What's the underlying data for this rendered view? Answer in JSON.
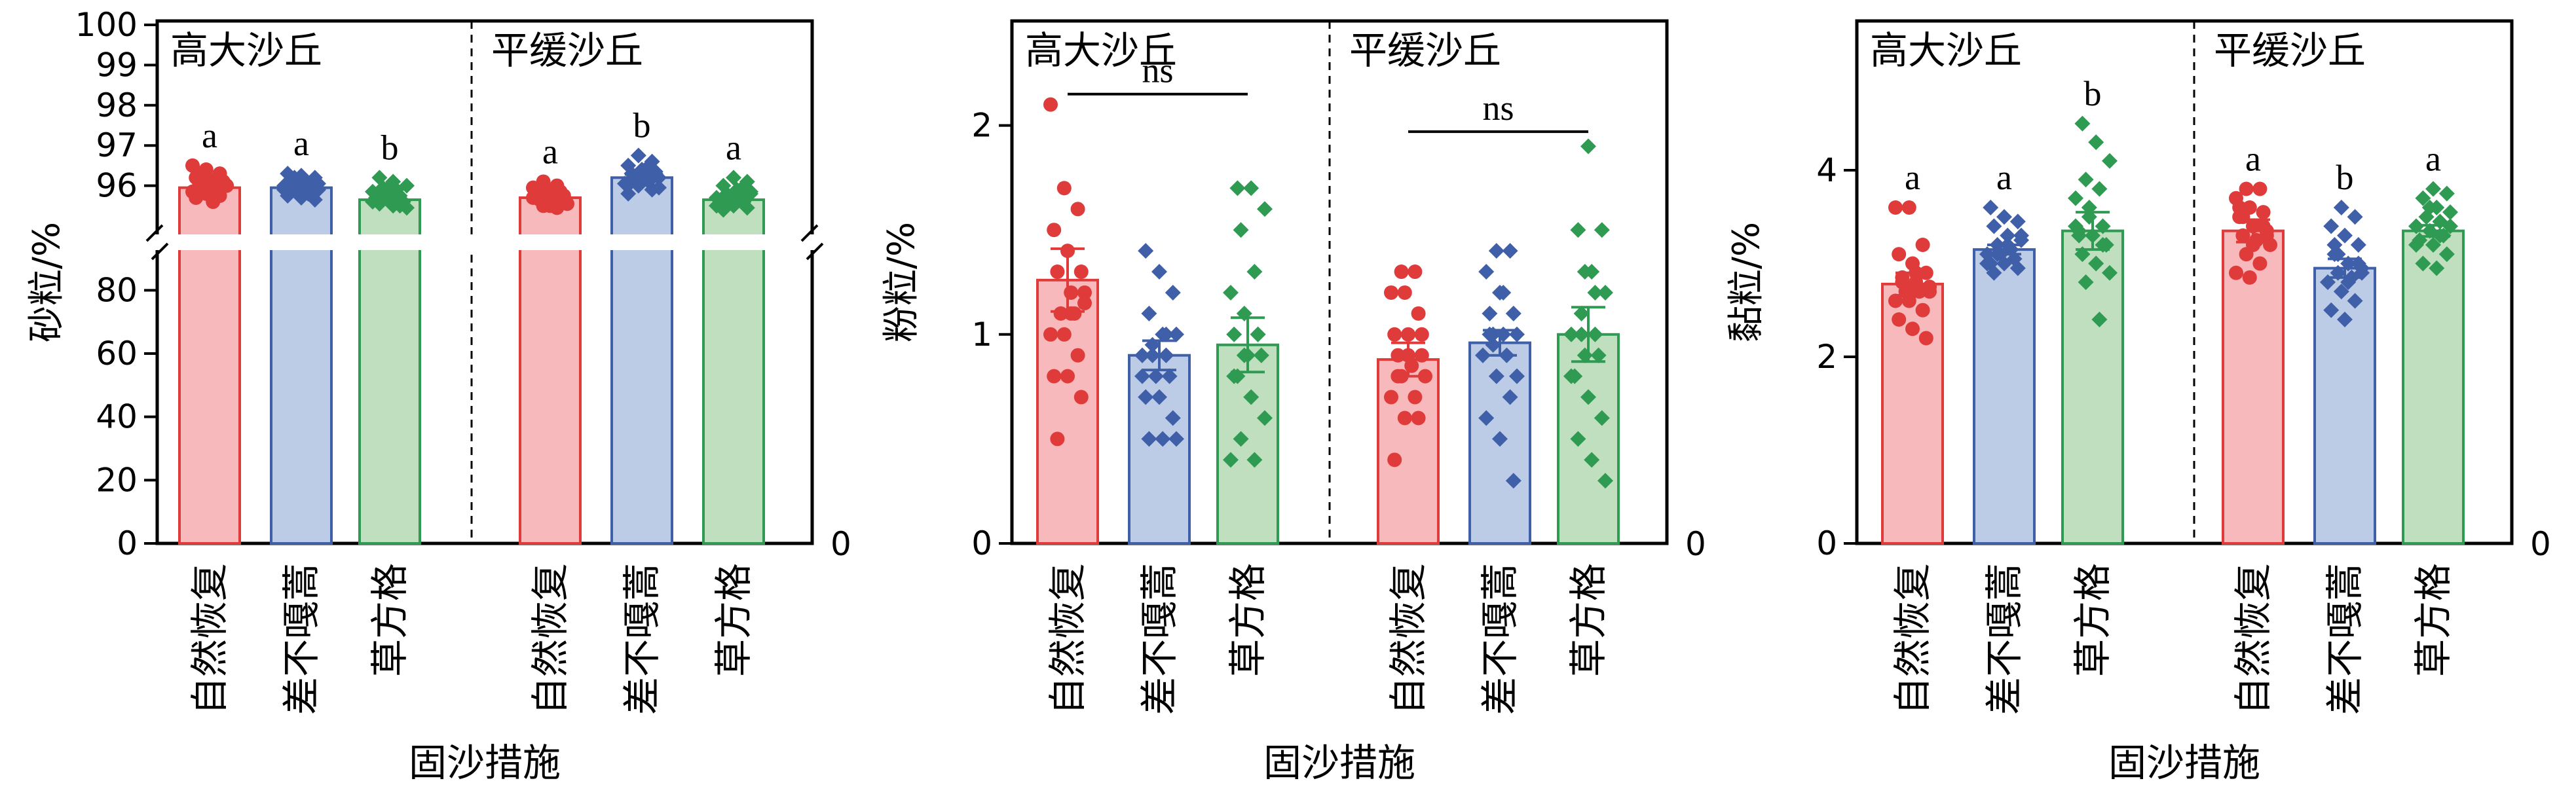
{
  "colors": {
    "red": "#e03b3b",
    "red_fill": "#f7b9bb",
    "blue": "#3f5fa8",
    "blue_fill": "#bccbe6",
    "green": "#2f9a52",
    "green_fill": "#bfdfbf"
  },
  "chart_data": [
    {
      "type": "bar",
      "ylabel": "砂粒/%",
      "xlabel": "固沙措施",
      "groups": [
        "高大沙丘",
        "平缓沙丘"
      ],
      "categories": [
        "自然恢复",
        "差不嘎蒿",
        "草方格"
      ],
      "y_axis_broken": true,
      "ylim_lower": [
        0,
        90
      ],
      "ylim_upper": [
        95,
        100
      ],
      "yticks_lower": [
        "0",
        "20",
        "40",
        "60",
        "80"
      ],
      "yticks_upper": [
        "96",
        "97",
        "98",
        "99",
        "100"
      ],
      "right_axis_tick": "0",
      "bars": [
        {
          "group": 0,
          "category": 0,
          "color": "red",
          "mean": 95.95,
          "err": 0.1,
          "sig": "a",
          "points": [
            96.5,
            96.4,
            96.3,
            96.2,
            96.15,
            96.1,
            96.05,
            96.0,
            96.0,
            95.95,
            95.9,
            95.85,
            95.8,
            95.75,
            95.7,
            95.9,
            96.1,
            96.3,
            95.6,
            96.0
          ]
        },
        {
          "group": 0,
          "category": 1,
          "color": "blue",
          "mean": 95.95,
          "err": 0.08,
          "sig": "a",
          "points": [
            96.3,
            96.25,
            96.2,
            96.15,
            96.1,
            96.05,
            96.0,
            95.95,
            95.9,
            95.85,
            95.8,
            95.75,
            95.7,
            95.65,
            96.0,
            96.1,
            95.9,
            96.2,
            95.8,
            96.0
          ]
        },
        {
          "group": 0,
          "category": 2,
          "color": "green",
          "mean": 95.65,
          "err": 0.08,
          "sig": "b",
          "points": [
            96.2,
            96.1,
            96.0,
            95.95,
            95.9,
            95.85,
            95.8,
            95.75,
            95.7,
            95.65,
            95.6,
            95.55,
            95.5,
            95.45,
            95.7,
            95.8,
            95.6,
            95.9,
            95.5,
            95.7
          ]
        },
        {
          "group": 1,
          "category": 0,
          "color": "red",
          "mean": 95.7,
          "err": 0.06,
          "sig": "a",
          "points": [
            96.1,
            96.0,
            95.95,
            95.9,
            95.85,
            95.8,
            95.75,
            95.7,
            95.65,
            95.6,
            95.55,
            95.5,
            95.45,
            95.7,
            95.8,
            95.6,
            95.9,
            95.5,
            95.75,
            95.65
          ]
        },
        {
          "group": 1,
          "category": 1,
          "color": "blue",
          "mean": 96.2,
          "err": 0.08,
          "sig": "b",
          "points": [
            96.75,
            96.6,
            96.5,
            96.4,
            96.35,
            96.3,
            96.25,
            96.2,
            96.15,
            96.1,
            96.05,
            96.0,
            95.9,
            95.8,
            96.2,
            96.3,
            96.1,
            96.4,
            95.95,
            96.2
          ]
        },
        {
          "group": 1,
          "category": 2,
          "color": "green",
          "mean": 95.65,
          "err": 0.07,
          "sig": "a",
          "points": [
            96.2,
            96.1,
            96.0,
            95.9,
            95.85,
            95.8,
            95.75,
            95.7,
            95.65,
            95.6,
            95.55,
            95.5,
            95.45,
            95.4,
            95.7,
            95.8,
            95.6,
            95.9,
            95.5,
            95.65
          ]
        }
      ]
    },
    {
      "type": "bar",
      "ylabel": "粉粒/%",
      "xlabel": "固沙措施",
      "groups": [
        "高大沙丘",
        "平缓沙丘"
      ],
      "categories": [
        "自然恢复",
        "差不嘎蒿",
        "草方格"
      ],
      "ylim": [
        0,
        2.5
      ],
      "yticks": [
        "0",
        "1",
        "2"
      ],
      "right_axis_tick": "0",
      "brackets": [
        {
          "group": 0,
          "label": "ns",
          "y": 2.15
        },
        {
          "group": 1,
          "label": "ns",
          "y": 1.97
        }
      ],
      "bars": [
        {
          "group": 0,
          "category": 0,
          "color": "red",
          "mean": 1.26,
          "err": 0.15,
          "points": [
            2.1,
            1.7,
            1.6,
            1.5,
            1.4,
            1.3,
            1.3,
            1.2,
            1.15,
            1.1,
            1.1,
            1.0,
            1.0,
            0.9,
            0.8,
            0.8,
            0.7,
            0.5,
            1.1,
            1.2
          ]
        },
        {
          "group": 0,
          "category": 1,
          "color": "blue",
          "mean": 0.9,
          "err": 0.07,
          "points": [
            1.4,
            1.3,
            1.2,
            1.1,
            1.0,
            1.0,
            0.95,
            0.9,
            0.9,
            0.8,
            0.8,
            0.7,
            0.7,
            0.6,
            0.5,
            0.5,
            0.5,
            0.9,
            1.0,
            0.8
          ]
        },
        {
          "group": 0,
          "category": 2,
          "color": "green",
          "mean": 0.95,
          "err": 0.13,
          "points": [
            1.7,
            1.7,
            1.6,
            1.5,
            1.3,
            1.2,
            1.1,
            1.0,
            1.0,
            0.9,
            0.9,
            0.8,
            0.7,
            0.6,
            0.5,
            0.4,
            0.4,
            0.9,
            1.0,
            0.8
          ]
        },
        {
          "group": 1,
          "category": 0,
          "color": "red",
          "mean": 0.88,
          "err": 0.08,
          "points": [
            1.3,
            1.3,
            1.2,
            1.2,
            1.1,
            1.0,
            1.0,
            0.9,
            0.9,
            0.85,
            0.8,
            0.8,
            0.7,
            0.7,
            0.6,
            0.6,
            0.4,
            0.9,
            1.0,
            0.8
          ]
        },
        {
          "group": 1,
          "category": 1,
          "color": "blue",
          "mean": 0.96,
          "err": 0.06,
          "points": [
            1.4,
            1.4,
            1.3,
            1.2,
            1.1,
            1.1,
            1.0,
            1.0,
            0.95,
            0.9,
            0.9,
            0.8,
            0.7,
            0.6,
            0.5,
            0.3,
            1.0,
            1.2,
            0.8,
            1.0
          ]
        },
        {
          "group": 1,
          "category": 2,
          "color": "green",
          "mean": 1.0,
          "err": 0.13,
          "points": [
            1.9,
            1.5,
            1.5,
            1.3,
            1.2,
            1.1,
            1.0,
            1.0,
            0.9,
            0.9,
            0.8,
            0.7,
            0.6,
            0.5,
            0.4,
            0.3,
            1.0,
            1.2,
            0.8,
            1.3
          ]
        }
      ]
    },
    {
      "type": "bar",
      "ylabel": "黏粒/%",
      "xlabel": "固沙措施",
      "groups": [
        "高大沙丘",
        "平缓沙丘"
      ],
      "categories": [
        "自然恢复",
        "差不嘎蒿",
        "草方格"
      ],
      "ylim": [
        0,
        5.6
      ],
      "yticks": [
        "0",
        "2",
        "4"
      ],
      "right_axis_tick": "0",
      "bars": [
        {
          "group": 0,
          "category": 0,
          "color": "red",
          "mean": 2.78,
          "err": 0.12,
          "sig": "a",
          "points": [
            3.6,
            3.6,
            3.2,
            3.1,
            3.0,
            2.9,
            2.85,
            2.8,
            2.75,
            2.7,
            2.7,
            2.6,
            2.6,
            2.5,
            2.4,
            2.3,
            2.2,
            2.8,
            2.9,
            2.7
          ]
        },
        {
          "group": 0,
          "category": 1,
          "color": "blue",
          "mean": 3.15,
          "err": 0.05,
          "sig": "a",
          "points": [
            3.6,
            3.5,
            3.45,
            3.4,
            3.3,
            3.25,
            3.2,
            3.15,
            3.1,
            3.1,
            3.05,
            3.0,
            3.0,
            2.95,
            2.9,
            3.2,
            3.3,
            3.1,
            3.15,
            3.0
          ]
        },
        {
          "group": 0,
          "category": 2,
          "color": "green",
          "mean": 3.35,
          "err": 0.2,
          "sig": "b",
          "points": [
            4.5,
            4.3,
            4.1,
            3.9,
            3.8,
            3.7,
            3.5,
            3.4,
            3.35,
            3.3,
            3.2,
            3.1,
            3.0,
            2.9,
            2.8,
            2.4,
            3.4,
            3.6,
            3.2,
            3.3
          ]
        },
        {
          "group": 1,
          "category": 0,
          "color": "red",
          "mean": 3.35,
          "err": 0.12,
          "sig": "a",
          "points": [
            3.8,
            3.8,
            3.7,
            3.6,
            3.55,
            3.5,
            3.4,
            3.35,
            3.3,
            3.25,
            3.2,
            3.1,
            3.0,
            2.9,
            2.85,
            3.4,
            3.6,
            3.2,
            3.3,
            3.5
          ]
        },
        {
          "group": 1,
          "category": 1,
          "color": "blue",
          "mean": 2.95,
          "err": 0.1,
          "sig": "b",
          "points": [
            3.6,
            3.5,
            3.4,
            3.3,
            3.2,
            3.1,
            3.0,
            2.95,
            2.9,
            2.85,
            2.8,
            2.7,
            2.6,
            2.5,
            2.4,
            3.0,
            3.2,
            2.8,
            2.9,
            3.1
          ]
        },
        {
          "group": 1,
          "category": 2,
          "color": "green",
          "mean": 3.35,
          "err": 0.06,
          "sig": "a",
          "points": [
            3.8,
            3.75,
            3.7,
            3.6,
            3.55,
            3.5,
            3.45,
            3.4,
            3.35,
            3.3,
            3.25,
            3.2,
            3.1,
            3.0,
            2.95,
            3.4,
            3.5,
            3.3,
            3.2,
            3.6
          ]
        }
      ]
    }
  ]
}
